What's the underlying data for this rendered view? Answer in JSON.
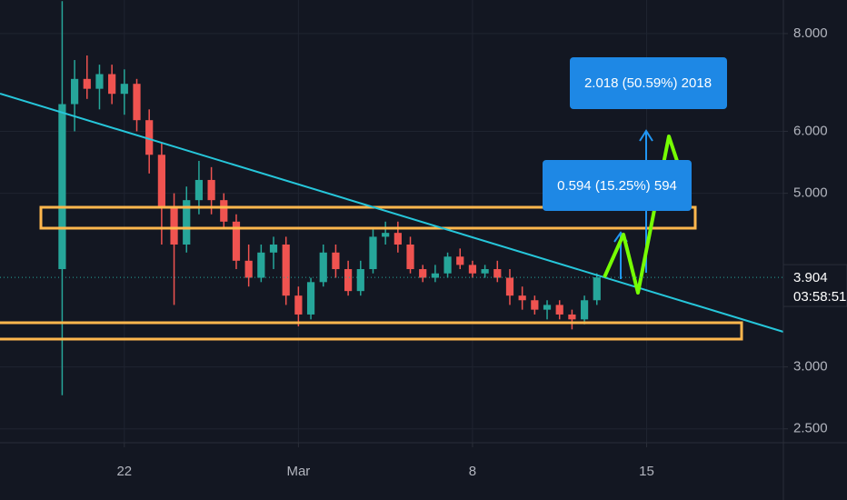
{
  "chart_data": {
    "type": "candlestick",
    "log_scale": true,
    "grid": true,
    "up_color": "#26a69a",
    "down_color": "#ef5350",
    "x": [
      19.5,
      20,
      20.5,
      21,
      21.5,
      22,
      22.5,
      23,
      23.5,
      24,
      24.5,
      25,
      25.5,
      26,
      26.5,
      27,
      27.5,
      28,
      28.5,
      29,
      29.5,
      30,
      30.5,
      31,
      31.5,
      32,
      32.5,
      33,
      33.5,
      34,
      34.5,
      35,
      35.5,
      36,
      36.5,
      37,
      37.5,
      38,
      38.5,
      39,
      39.5,
      40,
      40.5,
      41
    ],
    "open": [
      4.0,
      6.5,
      7.0,
      6.8,
      7.1,
      6.7,
      6.9,
      6.2,
      5.6,
      4.8,
      4.3,
      4.9,
      5.2,
      4.9,
      4.6,
      4.1,
      3.9,
      4.2,
      4.3,
      3.7,
      3.5,
      3.85,
      4.2,
      4.0,
      3.75,
      4.0,
      4.4,
      4.45,
      4.3,
      4.0,
      3.9,
      3.95,
      4.15,
      4.05,
      3.95,
      4.0,
      3.9,
      3.7,
      3.65,
      3.55,
      3.6,
      3.5,
      3.45,
      3.65
    ],
    "high": [
      8.8,
      7.4,
      7.5,
      7.3,
      7.3,
      7.2,
      7.0,
      6.4,
      5.8,
      5.0,
      5.1,
      5.5,
      5.4,
      5.0,
      4.7,
      4.3,
      4.3,
      4.4,
      4.4,
      3.8,
      3.9,
      4.3,
      4.3,
      4.1,
      4.1,
      4.5,
      4.6,
      4.6,
      4.4,
      4.05,
      4.05,
      4.2,
      4.25,
      4.1,
      4.05,
      4.1,
      4.0,
      3.8,
      3.7,
      3.65,
      3.65,
      3.55,
      3.7,
      3.95
    ],
    "low": [
      2.76,
      6.0,
      6.6,
      6.4,
      6.5,
      6.3,
      6.0,
      5.3,
      4.3,
      3.6,
      4.2,
      4.7,
      4.7,
      4.5,
      4.0,
      3.8,
      3.85,
      4.0,
      3.6,
      3.38,
      3.45,
      3.8,
      3.9,
      3.7,
      3.7,
      3.95,
      4.3,
      4.2,
      3.95,
      3.85,
      3.85,
      3.9,
      4.0,
      3.9,
      3.9,
      3.85,
      3.6,
      3.55,
      3.5,
      3.45,
      3.45,
      3.35,
      3.4,
      3.6
    ],
    "close": [
      6.5,
      7.0,
      6.8,
      7.1,
      6.7,
      6.9,
      6.2,
      5.6,
      4.8,
      4.3,
      4.9,
      5.2,
      4.9,
      4.6,
      4.1,
      3.9,
      4.2,
      4.3,
      3.7,
      3.5,
      3.85,
      4.2,
      4.0,
      3.75,
      4.0,
      4.4,
      4.45,
      4.3,
      4.0,
      3.9,
      3.95,
      4.15,
      4.05,
      3.95,
      4.0,
      3.9,
      3.7,
      3.65,
      3.55,
      3.6,
      3.5,
      3.45,
      3.65,
      3.904
    ],
    "xlim": [
      17,
      48.5
    ],
    "ylim": [
      2.4,
      8.83
    ],
    "xticks": [
      {
        "value": 22,
        "label": "22"
      },
      {
        "value": 29,
        "label": "Mar"
      },
      {
        "value": 36,
        "label": "8"
      },
      {
        "value": 43,
        "label": "15"
      }
    ],
    "yticks": [
      {
        "value": 2.5,
        "label": "2.500"
      },
      {
        "value": 3,
        "label": "3.000"
      },
      {
        "value": 5,
        "label": "5.000"
      },
      {
        "value": 6,
        "label": "6.000"
      },
      {
        "value": 8,
        "label": "8.000"
      }
    ],
    "last_price": 3.904,
    "countdown": "03:58:51",
    "annotations": [
      "0.594 (15.25%) 594",
      "2.018 (50.59%) 2018"
    ]
  }
}
